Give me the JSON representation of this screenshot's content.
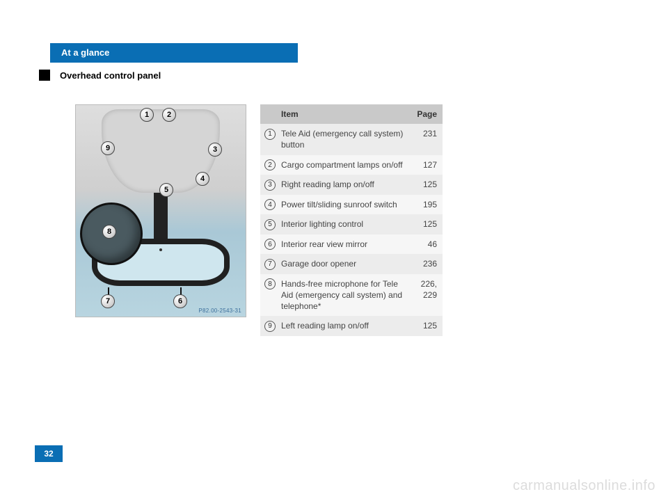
{
  "header": {
    "chapter": "At a glance",
    "section": "Overhead control panel"
  },
  "diagram": {
    "label": "P82.00-2543-31",
    "callouts": [
      "1",
      "2",
      "3",
      "4",
      "5",
      "6",
      "7",
      "8",
      "9"
    ]
  },
  "table": {
    "head": {
      "item": "Item",
      "page": "Page"
    },
    "rows": [
      {
        "num": "1",
        "item": "Tele Aid (emergency call system) button",
        "page": "231"
      },
      {
        "num": "2",
        "item": "Cargo compartment lamps on/off",
        "page": "127"
      },
      {
        "num": "3",
        "item": "Right reading lamp on/off",
        "page": "125"
      },
      {
        "num": "4",
        "item": "Power tilt/sliding sunroof switch",
        "page": "195"
      },
      {
        "num": "5",
        "item": "Interior lighting control",
        "page": "125"
      },
      {
        "num": "6",
        "item": "Interior rear view mirror",
        "page": "46"
      },
      {
        "num": "7",
        "item": "Garage door opener",
        "page": "236"
      },
      {
        "num": "8",
        "item": "Hands-free microphone for Tele Aid (emergency call system) and telephone*",
        "page": "226, 229"
      },
      {
        "num": "9",
        "item": "Left reading lamp on/off",
        "page": "125"
      }
    ]
  },
  "pageNumber": "32",
  "watermark": "carmanualsonline.info"
}
